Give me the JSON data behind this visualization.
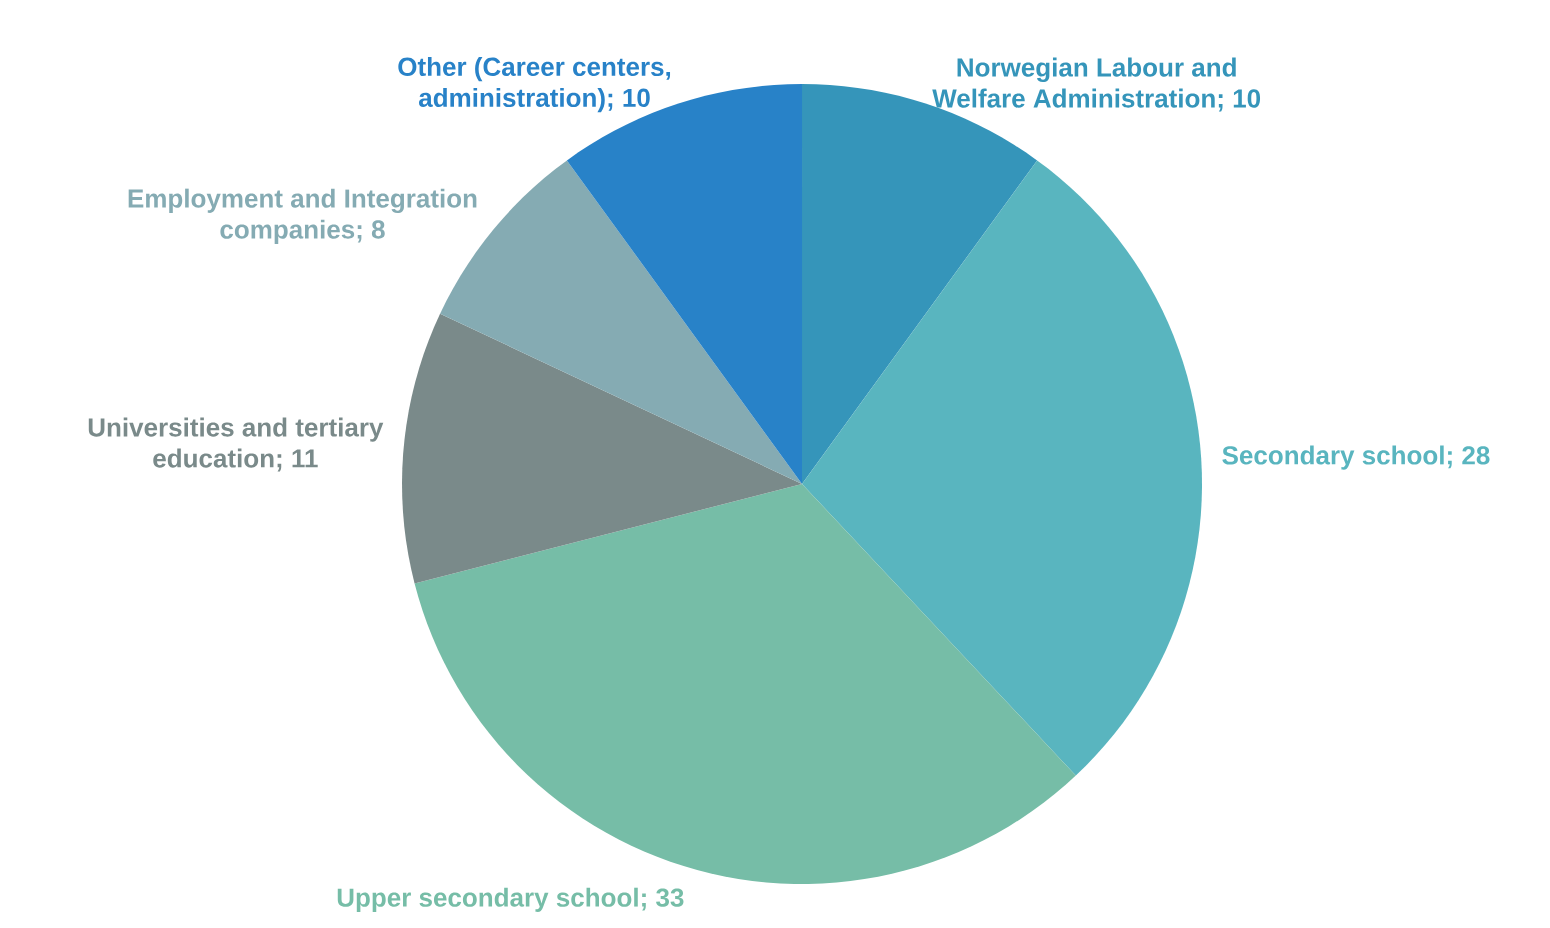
{
  "chart_data": {
    "type": "pie",
    "categories": [
      "Norwegian Labour and Welfare Administration",
      "Secondary school",
      "Upper secondary school",
      "Universities and tertiary education",
      "Employment and Integration companies",
      "Other (Career centers, administration)"
    ],
    "values": [
      10,
      28,
      33,
      11,
      8,
      10
    ],
    "colors": [
      "#3595ba",
      "#59b5bf",
      "#76bda7",
      "#7a8a8a",
      "#85abb3",
      "#2882c8"
    ],
    "value_labels": [
      "; 10",
      "; 28",
      "; 33",
      "; 11",
      "; 8",
      "; 10"
    ]
  }
}
